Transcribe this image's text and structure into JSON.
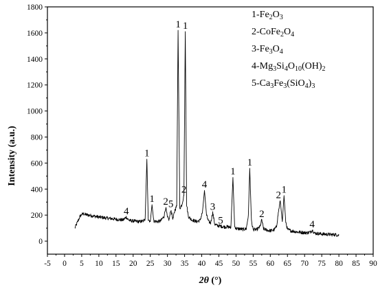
{
  "chart_data": {
    "type": "line",
    "title": "",
    "xlabel": "2θ (°)",
    "xlabel_parts": {
      "symbol": "2θ",
      "unit": " (°)"
    },
    "ylabel": "Intensity (a.u.)",
    "xlim": [
      -5,
      90
    ],
    "ylim": [
      -100,
      1800
    ],
    "x_ticks": [
      -5,
      0,
      5,
      10,
      15,
      20,
      25,
      30,
      35,
      40,
      45,
      50,
      55,
      60,
      65,
      70,
      75,
      80,
      85,
      90
    ],
    "y_ticks": [
      0,
      200,
      400,
      600,
      800,
      1000,
      1200,
      1400,
      1600,
      1800
    ],
    "grid": false,
    "legend_position": "top-right",
    "legend": [
      {
        "id": "1",
        "parts": [
          [
            "1-Fe",
            ""
          ],
          [
            "2",
            "sub"
          ],
          [
            "O",
            ""
          ],
          [
            "3",
            "sub"
          ]
        ]
      },
      {
        "id": "2",
        "parts": [
          [
            "2-CoFe",
            ""
          ],
          [
            "2",
            "sub"
          ],
          [
            "O",
            ""
          ],
          [
            "4",
            "sub"
          ]
        ]
      },
      {
        "id": "3",
        "parts": [
          [
            "3-Fe",
            ""
          ],
          [
            "3",
            "sub"
          ],
          [
            "O",
            ""
          ],
          [
            "4",
            "sub"
          ]
        ]
      },
      {
        "id": "4",
        "parts": [
          [
            "4-Mg",
            ""
          ],
          [
            "3",
            "sub"
          ],
          [
            "Si",
            ""
          ],
          [
            "4",
            "sub"
          ],
          [
            "O",
            ""
          ],
          [
            "10",
            "sub"
          ],
          [
            "(OH)",
            ""
          ],
          [
            "2",
            "sub"
          ]
        ]
      },
      {
        "id": "5",
        "parts": [
          [
            "5-Ca",
            ""
          ],
          [
            "3",
            "sub"
          ],
          [
            "Fe",
            ""
          ],
          [
            "3",
            "sub"
          ],
          [
            "(SiO",
            ""
          ],
          [
            "4",
            "sub"
          ],
          [
            ")",
            ""
          ],
          [
            "3",
            "sub"
          ]
        ]
      }
    ],
    "series": [
      {
        "x": [
          3.0,
          3.5,
          4.0,
          4.5,
          5.0,
          5.5,
          6.0,
          7.0,
          8.0,
          9.0,
          10.0,
          11.0,
          12.0,
          13.0,
          14.0,
          15.0,
          16.0,
          17.0,
          17.6,
          18.0,
          18.4,
          19.0,
          20.0,
          21.0,
          22.0,
          23.0,
          23.5,
          24.0,
          24.4,
          25.0,
          25.5,
          26.0,
          27.0,
          28.0,
          29.0,
          29.5,
          30.0,
          30.5,
          31.0,
          31.6,
          32.2,
          32.7,
          33.1,
          33.6,
          34.2,
          34.8,
          35.2,
          35.6,
          36.1,
          36.8,
          37.5,
          38.5,
          39.5,
          40.2,
          40.8,
          41.4,
          42.0,
          42.6,
          43.2,
          43.8,
          44.5,
          45.5,
          46.5,
          47.5,
          48.5,
          49.1,
          49.6,
          50.2,
          51.0,
          52.0,
          53.0,
          53.6,
          54.0,
          54.5,
          55.0,
          56.0,
          57.0,
          57.5,
          58.0,
          59.0,
          60.0,
          61.0,
          61.8,
          62.4,
          62.9,
          63.5,
          64.0,
          64.5,
          65.0,
          66.0,
          67.0,
          68.0,
          69.0,
          70.0,
          71.0,
          71.7,
          72.2,
          73.0,
          74.0,
          75.0,
          76.0,
          77.0,
          78.0,
          79.0,
          80.0
        ],
        "y": [
          100,
          130,
          160,
          190,
          205,
          210,
          205,
          200,
          195,
          190,
          185,
          182,
          178,
          175,
          172,
          168,
          165,
          162,
          175,
          185,
          170,
          158,
          155,
          152,
          150,
          155,
          170,
          630,
          170,
          150,
          280,
          155,
          150,
          155,
          190,
          260,
          180,
          165,
          240,
          170,
          240,
          270,
          1620,
          250,
          280,
          350,
          1610,
          280,
          190,
          170,
          160,
          150,
          160,
          220,
          390,
          200,
          150,
          140,
          220,
          130,
          120,
          115,
          110,
          110,
          105,
          490,
          110,
          95,
          95,
          90,
          95,
          200,
          560,
          150,
          90,
          88,
          110,
          165,
          95,
          85,
          80,
          85,
          110,
          230,
          310,
          150,
          350,
          150,
          90,
          80,
          75,
          70,
          68,
          65,
          65,
          70,
          85,
          60,
          58,
          55,
          53,
          52,
          50,
          50,
          45
        ]
      }
    ],
    "annotations": [
      {
        "text": "4",
        "x": 18.0,
        "y": 185
      },
      {
        "text": "1",
        "x": 24.0,
        "y": 630
      },
      {
        "text": "1",
        "x": 25.5,
        "y": 280
      },
      {
        "text": "2",
        "x": 29.5,
        "y": 260
      },
      {
        "text": "5",
        "x": 31.0,
        "y": 240
      },
      {
        "text": "1",
        "x": 33.1,
        "y": 1620
      },
      {
        "text": "2",
        "x": 34.8,
        "y": 350
      },
      {
        "text": "1",
        "x": 35.2,
        "y": 1610
      },
      {
        "text": "4",
        "x": 40.8,
        "y": 390
      },
      {
        "text": "3",
        "x": 43.2,
        "y": 220
      },
      {
        "text": "5",
        "x": 45.5,
        "y": 115
      },
      {
        "text": "1",
        "x": 49.1,
        "y": 490
      },
      {
        "text": "1",
        "x": 54.0,
        "y": 560
      },
      {
        "text": "2",
        "x": 57.5,
        "y": 165
      },
      {
        "text": "2",
        "x": 62.4,
        "y": 310
      },
      {
        "text": "1",
        "x": 64.0,
        "y": 350
      },
      {
        "text": "4",
        "x": 72.2,
        "y": 85
      }
    ]
  }
}
